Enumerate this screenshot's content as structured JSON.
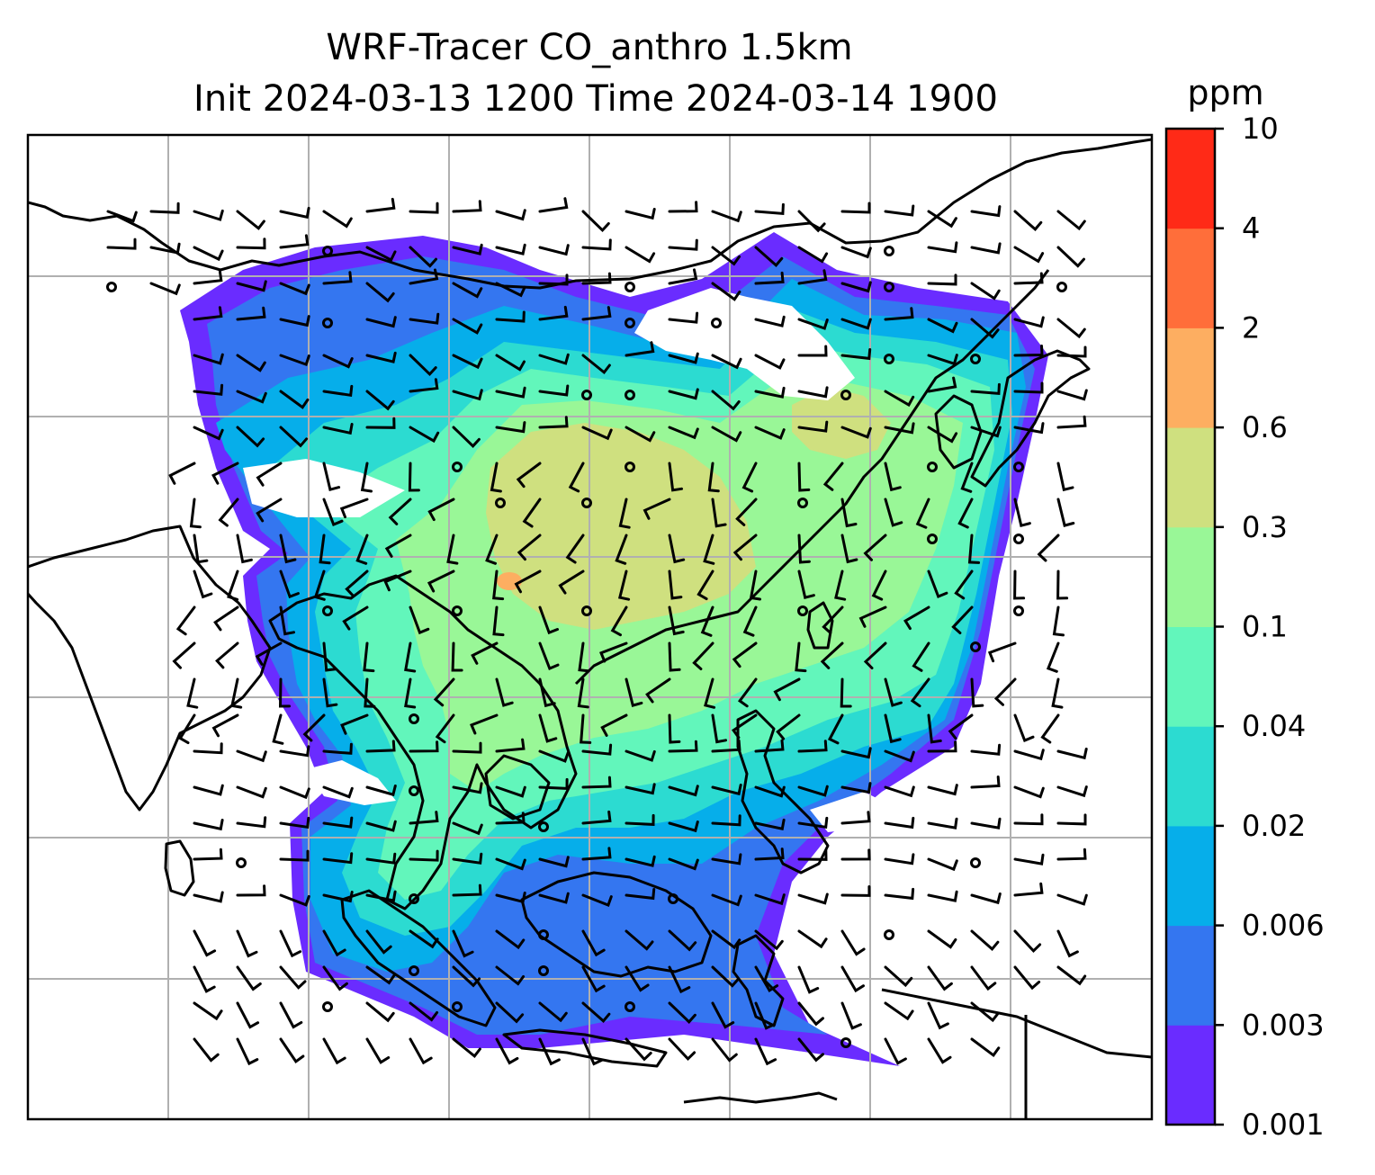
{
  "title": {
    "line1": "WRF-Tracer CO_anthro 1.5km",
    "line2": "Init 2024-03-13 1200 Time 2024-03-14 1900"
  },
  "colorbar": {
    "unit": "ppm",
    "ticks": [
      "0.001",
      "0.003",
      "0.006",
      "0.02",
      "0.04",
      "0.1",
      "0.3",
      "0.6",
      "2",
      "4",
      "10"
    ],
    "colors": [
      "#6a2cff",
      "#3476f0",
      "#06aeea",
      "#2cdbd1",
      "#62f6bb",
      "#99f797",
      "#cfe07f",
      "#fdae61",
      "#ff6e3a",
      "#ff2a17"
    ]
  },
  "map": {
    "gridlines": true,
    "field_colors": {
      "very_low": "#6a2cff",
      "low": "#3476f0",
      "low_mid": "#06aeea",
      "mid": "#2cdbd1",
      "mid_high": "#62f6bb",
      "high": "#99f797",
      "higher": "#cfe07f",
      "peak": "#fdae61"
    },
    "wind_barb_color": "#000000",
    "coastline_color": "#000000"
  }
}
